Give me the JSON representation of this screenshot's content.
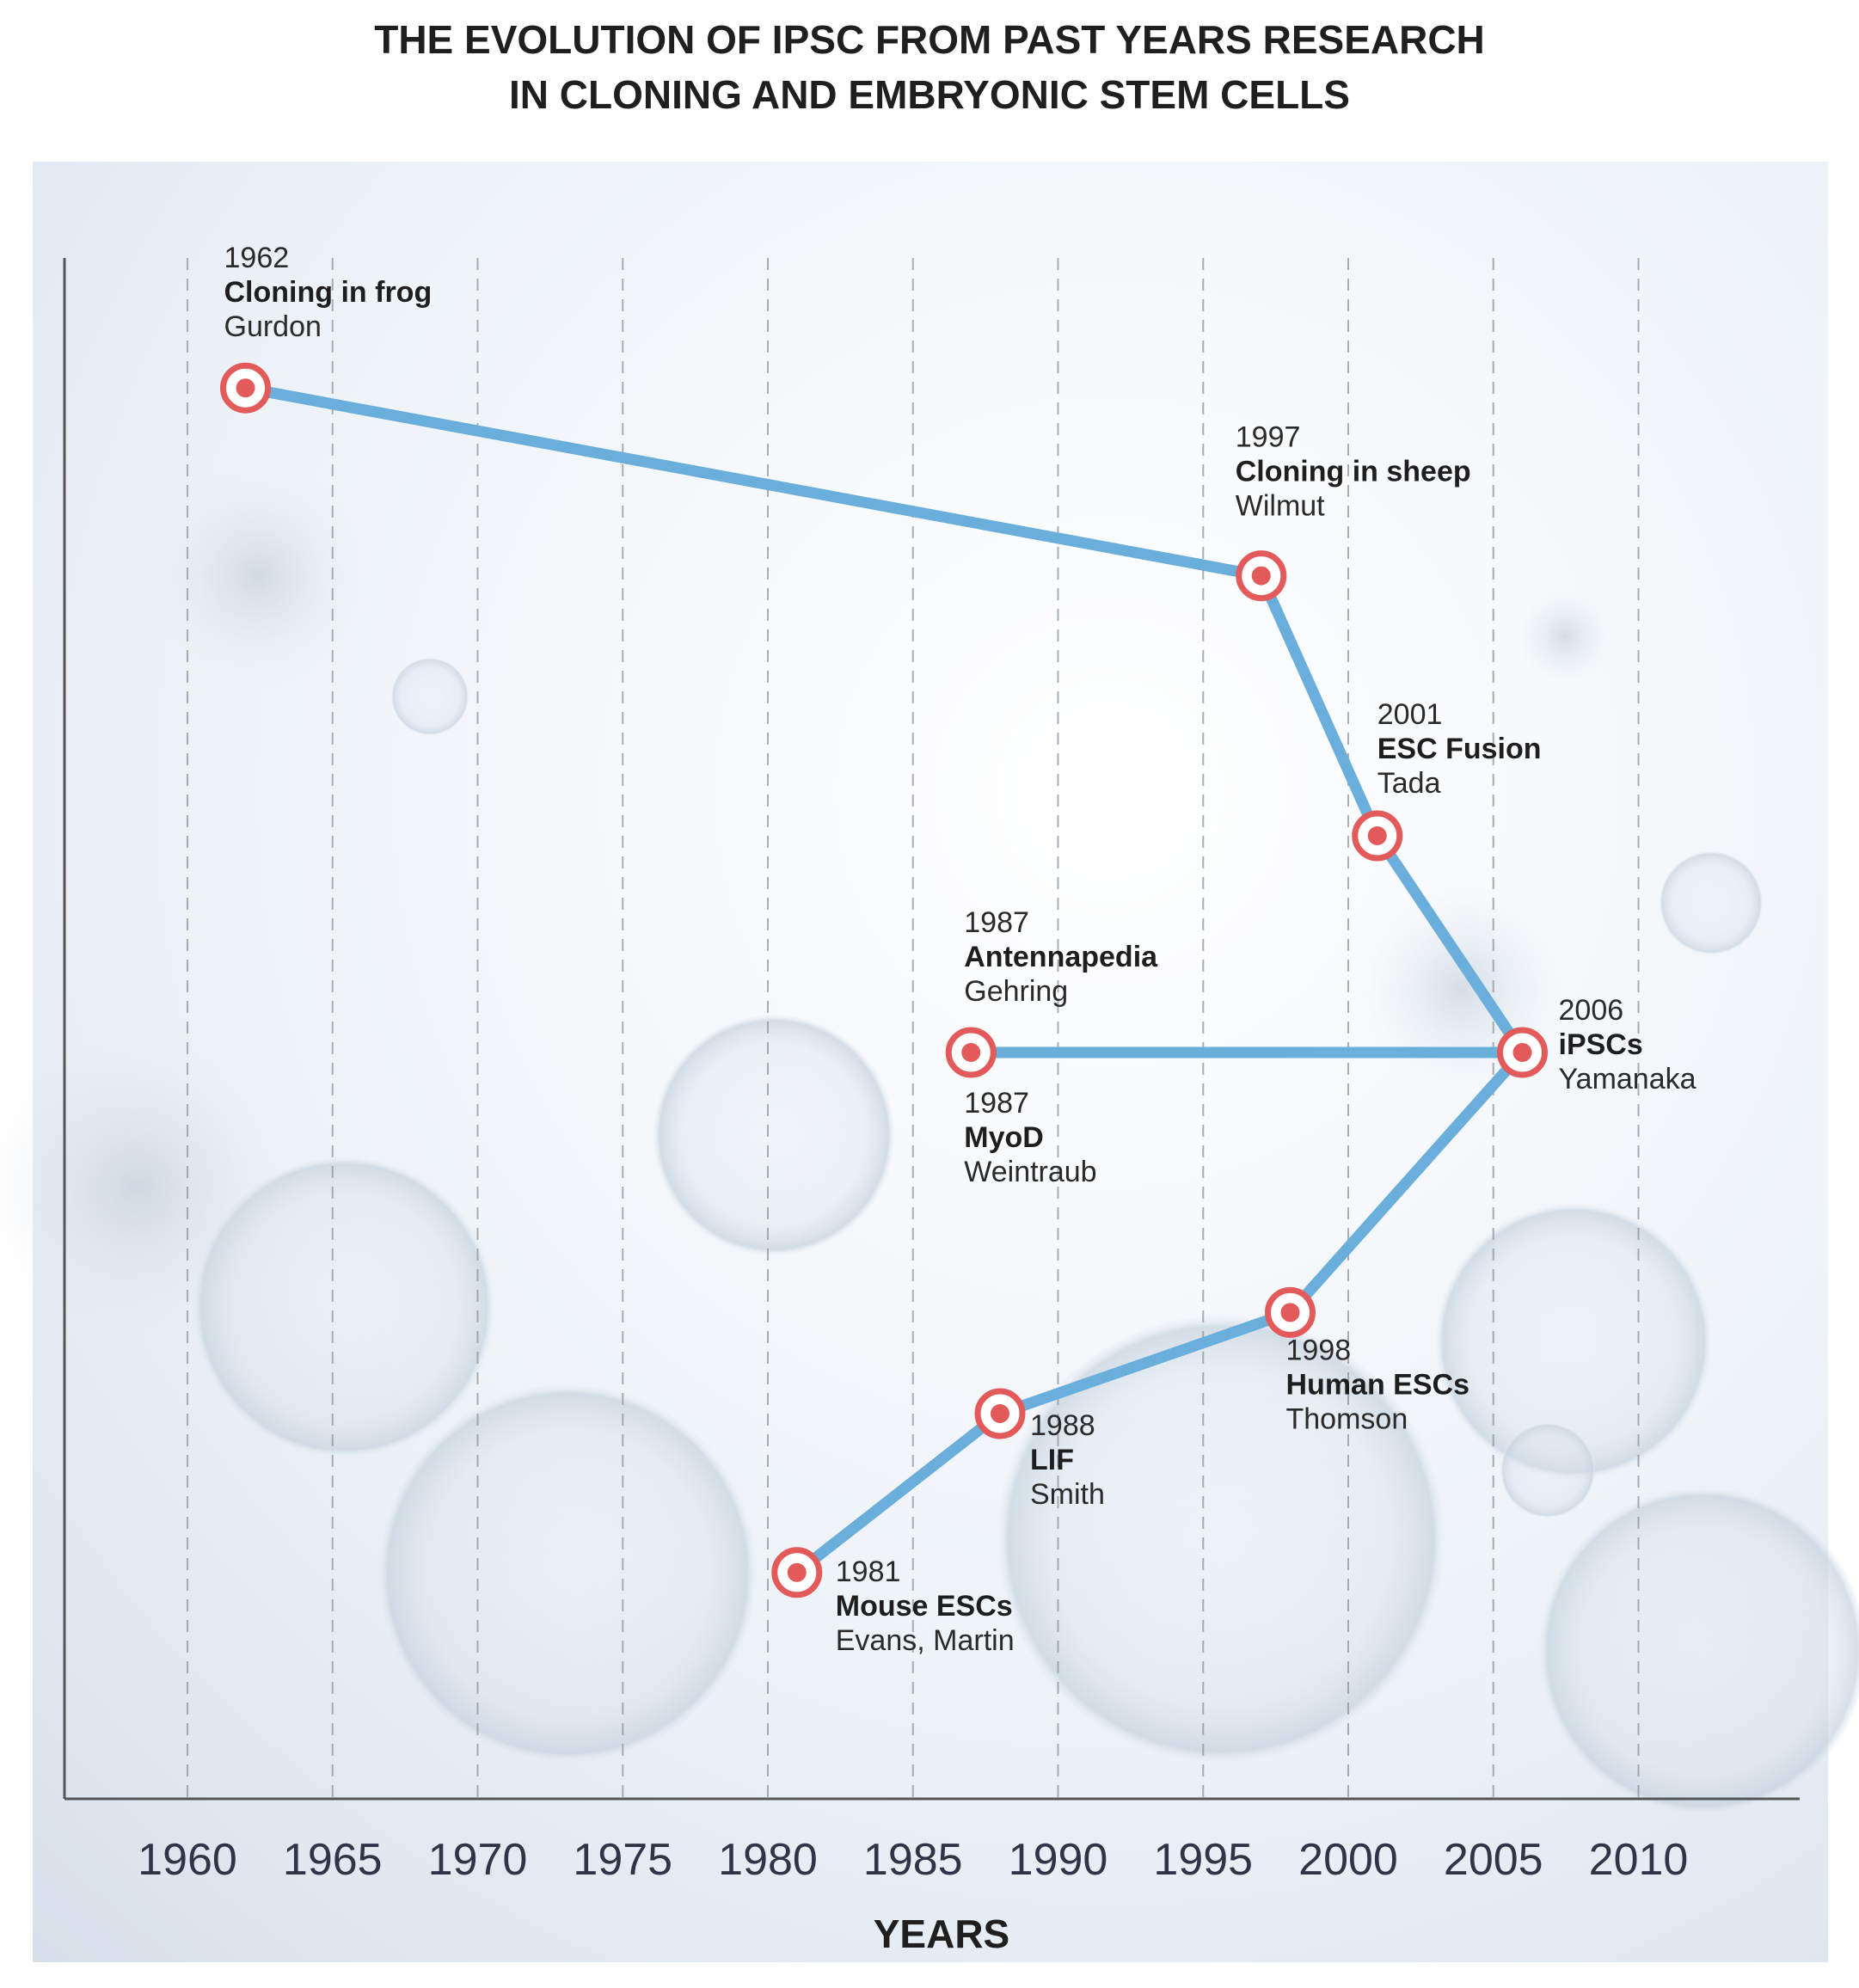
{
  "title_lines": [
    "THE EVOLUTION OF IPSC FROM PAST YEARS RESEARCH",
    "IN CLONING AND EMBRYONIC STEM CELLS"
  ],
  "chart_data": {
    "type": "line",
    "title": "THE EVOLUTION OF IPSC FROM PAST YEARS RESEARCH IN CLONING AND EMBRYONIC STEM CELLS",
    "xlabel": "YEARS",
    "ylabel": "",
    "xticks": [
      1960,
      1965,
      1970,
      1975,
      1980,
      1985,
      1990,
      1995,
      2000,
      2005,
      2010
    ],
    "xlim": [
      1957,
      2014
    ],
    "grid": "vertical dashed",
    "colors": {
      "line": "#6aaedc",
      "marker_ring": "#e25a5a",
      "marker_fill": "#ffffff",
      "axis": "#555555"
    },
    "points": [
      {
        "id": "gurdon",
        "year": 1962,
        "label_year": "1962",
        "title": "Cloning in frog",
        "author": "Gurdon",
        "level": 0.91
      },
      {
        "id": "wilmut",
        "year": 1997,
        "label_year": "1997",
        "title": "Cloning in sheep",
        "author": "Wilmut",
        "level": 0.78
      },
      {
        "id": "tada",
        "year": 2001,
        "label_year": "2001",
        "title": "ESC Fusion",
        "author": "Tada",
        "level": 0.6
      },
      {
        "id": "yamanaka",
        "year": 2006,
        "label_year": "2006",
        "title": "iPSCs",
        "author": "Yamanaka",
        "level": 0.45
      },
      {
        "id": "gehring",
        "year": 1987,
        "label_year": "1987",
        "title": "Antennapedia",
        "author": "Gehring",
        "level": 0.45
      },
      {
        "id": "thomson",
        "year": 1998,
        "label_year": "1998",
        "title": "Human ESCs",
        "author": "Thomson",
        "level": 0.27
      },
      {
        "id": "smith",
        "year": 1988,
        "label_year": "1988",
        "title": "LIF",
        "author": "Smith",
        "level": 0.2
      },
      {
        "id": "evans",
        "year": 1981,
        "label_year": "1981",
        "title": "Mouse ESCs",
        "author": "Evans, Martin",
        "level": 0.09
      }
    ],
    "extra_annotations": [
      {
        "id": "weintraub",
        "year": 1987,
        "label_year": "1987",
        "title": "MyoD",
        "author": "Weintraub"
      }
    ],
    "path_order": [
      "gurdon",
      "wilmut",
      "tada",
      "yamanaka",
      "gehring"
    ],
    "path_order_2": [
      "yamanaka",
      "thomson",
      "smith",
      "evans"
    ]
  }
}
